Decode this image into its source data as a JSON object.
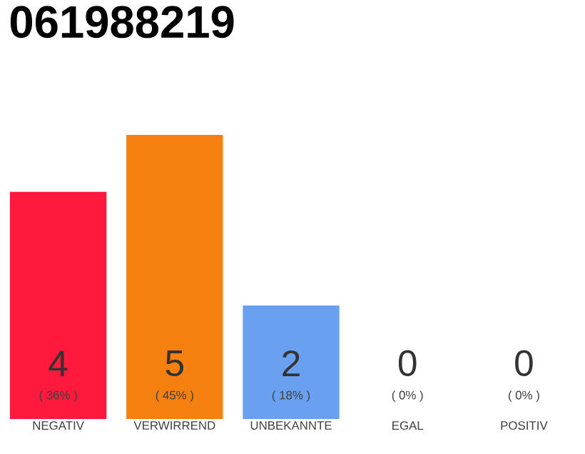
{
  "chart_data": {
    "type": "bar",
    "title": "061988219",
    "categories": [
      "NEGATIV",
      "VERWIRREND",
      "UNBEKANNTE",
      "EGAL",
      "POSITIV"
    ],
    "values": [
      4,
      5,
      2,
      0,
      0
    ],
    "colors": [
      "#ff1a3d",
      "#f58010",
      "#6aa0f0",
      "#f58010",
      "#f58010"
    ],
    "ylim": [
      0,
      5
    ],
    "tick_labels": "x",
    "data_labels": true,
    "annotations": [
      "( 36% )",
      "( 45% )",
      "( 18% )",
      "( 0% )",
      "( 0% )"
    ]
  }
}
